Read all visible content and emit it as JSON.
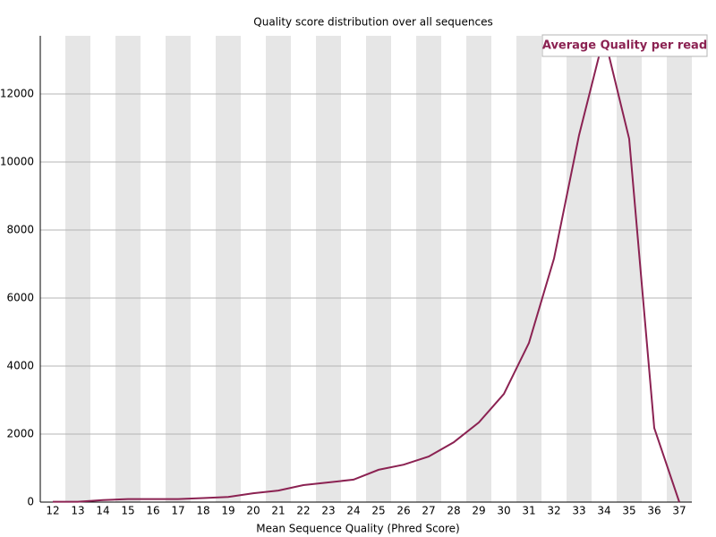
{
  "chart_data": {
    "type": "line",
    "title": "Quality score distribution over all sequences",
    "x_label": "Mean Sequence Quality (Phred Score)",
    "categories": [
      "12",
      "13",
      "14",
      "15",
      "16",
      "17",
      "18",
      "19",
      "20",
      "21",
      "22",
      "23",
      "24",
      "25",
      "26",
      "27",
      "28",
      "29",
      "30",
      "31",
      "32",
      "33",
      "34",
      "35",
      "36",
      "37"
    ],
    "series": [
      {
        "name": "Average Quality per read",
        "color": "#8b2252",
        "values": [
          10,
          10,
          60,
          90,
          90,
          90,
          120,
          150,
          260,
          340,
          500,
          580,
          660,
          950,
          1100,
          1340,
          1760,
          2340,
          3180,
          4680,
          7160,
          10790,
          13710,
          10680,
          2180,
          0
        ]
      }
    ],
    "ylim": [
      0,
      13710
    ],
    "yticks": [
      0,
      2000,
      4000,
      6000,
      8000,
      10000,
      12000
    ],
    "grid": true,
    "legend": "top-right"
  }
}
